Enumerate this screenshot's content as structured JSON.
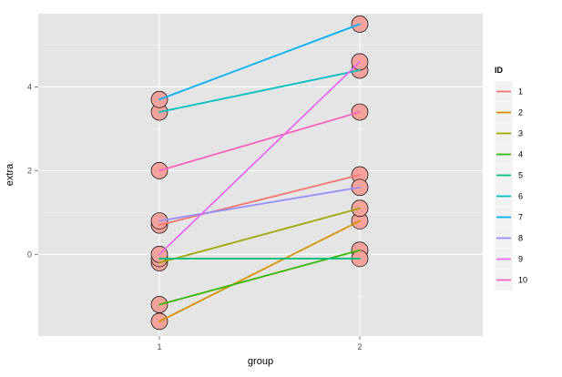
{
  "chart_data": {
    "type": "line",
    "xlabel": "group",
    "ylabel": "extra",
    "categories": [
      "1",
      "2"
    ],
    "ylim": [
      -1.95,
      5.75
    ],
    "yticks": [
      0,
      2,
      4
    ],
    "grid": true,
    "legend": {
      "title": "ID",
      "placement": "right"
    },
    "series": [
      {
        "name": "1",
        "values": [
          0.7,
          1.9
        ],
        "color": "#F8766D"
      },
      {
        "name": "2",
        "values": [
          -1.6,
          0.8
        ],
        "color": "#D89000"
      },
      {
        "name": "3",
        "values": [
          -0.2,
          1.1
        ],
        "color": "#A3A500"
      },
      {
        "name": "4",
        "values": [
          -1.2,
          0.1
        ],
        "color": "#39B600"
      },
      {
        "name": "5",
        "values": [
          -0.1,
          -0.1
        ],
        "color": "#00BF7D"
      },
      {
        "name": "6",
        "values": [
          3.4,
          4.4
        ],
        "color": "#00BFC4"
      },
      {
        "name": "7",
        "values": [
          3.7,
          5.5
        ],
        "color": "#00B0F6"
      },
      {
        "name": "8",
        "values": [
          0.8,
          1.6
        ],
        "color": "#9590FF"
      },
      {
        "name": "9",
        "values": [
          0.0,
          4.6
        ],
        "color": "#E76BF3"
      },
      {
        "name": "10",
        "values": [
          2.0,
          3.4
        ],
        "color": "#FF62BC"
      }
    ],
    "point_style": {
      "fill": "#F4A39C",
      "stroke": "#000000"
    }
  }
}
